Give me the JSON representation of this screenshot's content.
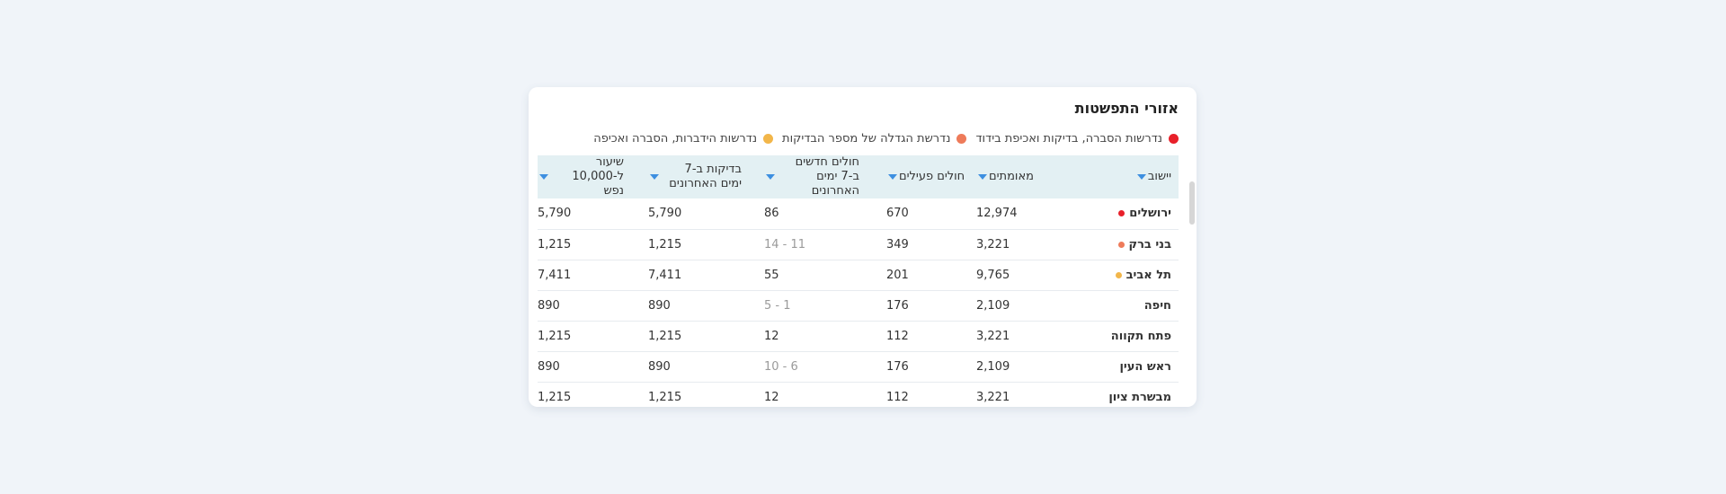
{
  "title": "אזורי התפשטות",
  "legend": [
    {
      "label": "נדרשות הסברה, בדיקות ואכיפת בידוד",
      "color": "#e8202a"
    },
    {
      "label": "נדרשת הגדלה של מספר הבדיקות",
      "color": "#ee7b5a"
    },
    {
      "label": "נדרשות הידברות, הסברה ואכיפה",
      "color": "#f2b64a"
    }
  ],
  "columns": [
    {
      "key": "name",
      "label": "יישוב"
    },
    {
      "key": "confirmed",
      "label": "מאומתים"
    },
    {
      "key": "active",
      "label": "חולים פעילים"
    },
    {
      "key": "new7",
      "label": "חולים חדשים ב-7 ימים האחרונים"
    },
    {
      "key": "tests7",
      "label": "בדיקות ב-7 ימים האחרונים"
    },
    {
      "key": "rate",
      "label": "שיעור ל-10,000 נפש"
    }
  ],
  "rows": [
    {
      "name": "ירושלים",
      "status_color": "#e8202a",
      "confirmed": "12,974",
      "active": "670",
      "new7": "86",
      "new7_muted": false,
      "tests7": "5,790",
      "rate": "5,790"
    },
    {
      "name": "בני ברק",
      "status_color": "#ee7b5a",
      "confirmed": "3,221",
      "active": "349",
      "new7": "11 - 14",
      "new7_muted": true,
      "tests7": "1,215",
      "rate": "1,215"
    },
    {
      "name": "תל אביב",
      "status_color": "#f2b64a",
      "confirmed": "9,765",
      "active": "201",
      "new7": "55",
      "new7_muted": false,
      "tests7": "7,411",
      "rate": "7,411"
    },
    {
      "name": "חיפה",
      "status_color": "",
      "confirmed": "2,109",
      "active": "176",
      "new7": "1 - 5",
      "new7_muted": true,
      "tests7": "890",
      "rate": "890"
    },
    {
      "name": "פתח תקווה",
      "status_color": "",
      "confirmed": "3,221",
      "active": "112",
      "new7": "12",
      "new7_muted": false,
      "tests7": "1,215",
      "rate": "1,215"
    },
    {
      "name": "ראש העין",
      "status_color": "",
      "confirmed": "2,109",
      "active": "176",
      "new7": "6 - 10",
      "new7_muted": true,
      "tests7": "890",
      "rate": "890"
    },
    {
      "name": "מבשרת ציון",
      "status_color": "",
      "confirmed": "3,221",
      "active": "112",
      "new7": "12",
      "new7_muted": false,
      "tests7": "1,215",
      "rate": "1,215"
    }
  ]
}
